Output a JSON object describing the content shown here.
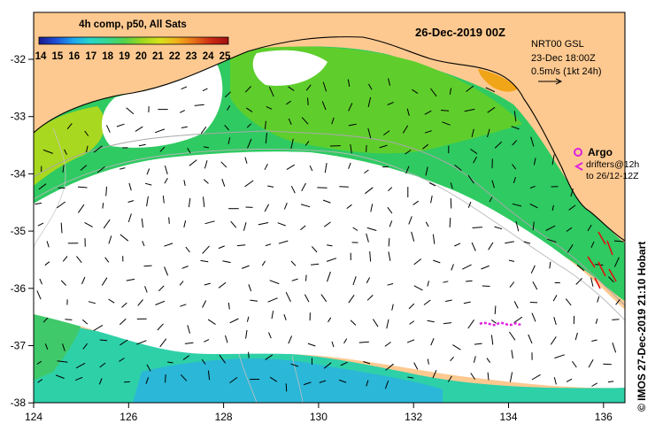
{
  "legend": {
    "title": "4h comp, p50, All Sats",
    "ticks": [
      "14",
      "15",
      "16",
      "17",
      "18",
      "19",
      "20",
      "21",
      "22",
      "23",
      "24",
      "25"
    ],
    "gradient_colors": [
      "#1a1a8c",
      "#1f4fd6",
      "#1ea6ef",
      "#28d6c8",
      "#36d690",
      "#56d24a",
      "#9ed81e",
      "#d8e21a",
      "#f0b21a",
      "#e87018",
      "#cc2a14",
      "#a01010"
    ]
  },
  "map_title": "26-Dec-2019 00Z",
  "info": {
    "line1": "NRT00 GSL",
    "line2": "23-Dec 18:00Z",
    "line3": "0.5m/s (1kt 24h)"
  },
  "argo": {
    "label": "Argo",
    "drifters_line1": "drifters@12h",
    "drifters_line2": "to 26/12-12Z",
    "color": "#e020e0"
  },
  "axes": {
    "x_ticks": [
      "124",
      "126",
      "128",
      "130",
      "132",
      "134",
      "136"
    ],
    "y_ticks": [
      "-32",
      "-33",
      "-34",
      "-35",
      "-36",
      "-37",
      "-38"
    ]
  },
  "credit": "© IMOS 27-Dec-2019 21:10 Hobart",
  "colors": {
    "land": "#fdc990",
    "cloud": "#ffffff",
    "coast": "#000000",
    "contour": "#a8a8a8"
  }
}
